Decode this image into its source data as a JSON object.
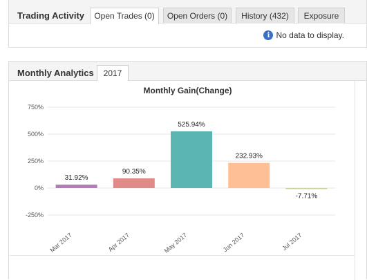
{
  "trading": {
    "title": "Trading Activity",
    "tabs": [
      {
        "label": "Open Trades (0)",
        "active": true
      },
      {
        "label": "Open Orders (0)",
        "active": false
      },
      {
        "label": "History (432)",
        "active": false
      },
      {
        "label": "Exposure",
        "active": false
      }
    ],
    "empty_message": "No data to display."
  },
  "analytics": {
    "title": "Monthly Analytics",
    "year_tab": "2017"
  },
  "chart_data": {
    "type": "bar",
    "title": "Monthly Gain(Change)",
    "categories": [
      "Mar 2017",
      "Apr 2017",
      "May 2017",
      "Jun 2017",
      "Jul 2017"
    ],
    "values": [
      31.92,
      90.35,
      525.94,
      232.93,
      -7.71
    ],
    "value_labels": [
      "31.92%",
      "90.35%",
      "525.94%",
      "232.93%",
      "-7.71%"
    ],
    "colors": [
      "#b57bb8",
      "#e08a8a",
      "#5bb5b0",
      "#ffbf94",
      "#c8d39a"
    ],
    "yticks": [
      -250,
      0,
      250,
      500,
      750
    ],
    "ytick_labels": [
      "-250%",
      "0%",
      "250%",
      "500%",
      "750%"
    ],
    "ylim": [
      -250,
      750
    ],
    "xlabel": "",
    "ylabel": "",
    "grid": true
  }
}
